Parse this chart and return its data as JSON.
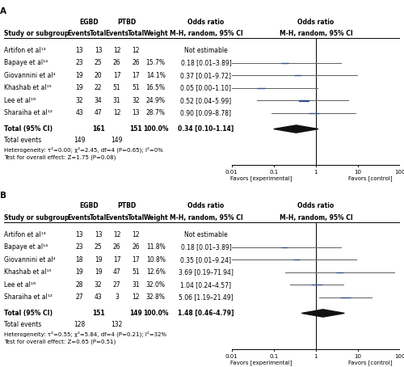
{
  "panel_A": {
    "title": "A",
    "studies": [
      {
        "name": "Artifon et al¹³",
        "egbd_e": "13",
        "egbd_t": "13",
        "ptbd_e": "12",
        "ptbd_t": "12",
        "weight": "",
        "or_text": "Not estimable",
        "or": null,
        "ci_lo": null,
        "ci_hi": null
      },
      {
        "name": "Bapaye et al¹⁴",
        "egbd_e": "23",
        "egbd_t": "25",
        "ptbd_e": "26",
        "ptbd_t": "26",
        "weight": "15.7%",
        "or_text": "0.18 [0.01–3.89]",
        "or": 0.18,
        "ci_lo": 0.01,
        "ci_hi": 3.89
      },
      {
        "name": "Giovannini et al⁴",
        "egbd_e": "19",
        "egbd_t": "20",
        "ptbd_e": "17",
        "ptbd_t": "17",
        "weight": "14.1%",
        "or_text": "0.37 [0.01–9.72]",
        "or": 0.37,
        "ci_lo": 0.01,
        "ci_hi": 9.72
      },
      {
        "name": "Khashab et al¹⁵",
        "egbd_e": "19",
        "egbd_t": "22",
        "ptbd_e": "51",
        "ptbd_t": "51",
        "weight": "16.5%",
        "or_text": "0.05 [0.00–1.10]",
        "or": 0.05,
        "ci_lo": 0.003,
        "ci_hi": 1.1
      },
      {
        "name": "Lee et al¹⁶",
        "egbd_e": "32",
        "egbd_t": "34",
        "ptbd_e": "31",
        "ptbd_t": "32",
        "weight": "24.9%",
        "or_text": "0.52 [0.04–5.99]",
        "or": 0.52,
        "ci_lo": 0.04,
        "ci_hi": 5.99
      },
      {
        "name": "Sharaiha et al¹²",
        "egbd_e": "43",
        "egbd_t": "47",
        "ptbd_e": "12",
        "ptbd_t": "13",
        "weight": "28.7%",
        "or_text": "0.90 [0.09–8.78]",
        "or": 0.9,
        "ci_lo": 0.09,
        "ci_hi": 8.78
      }
    ],
    "total_egbd_t": "161",
    "total_ptbd_t": "151",
    "total_weight": "100.0%",
    "total_or_text": "0.34 [0.10–1.14]",
    "total_events_egbd": "149",
    "total_events_ptbd": "149",
    "diamond_or": 0.34,
    "diamond_lo": 0.1,
    "diamond_hi": 1.14,
    "heterogeneity": "Heterogeneity: τ²=0.00; χ²=2.45, df=4 (P=0.65); I²=0%",
    "overall_effect": "Test for overall effect: Z=1.75 (P=0.08)"
  },
  "panel_B": {
    "title": "B",
    "studies": [
      {
        "name": "Artifon et al¹³",
        "egbd_e": "13",
        "egbd_t": "13",
        "ptbd_e": "12",
        "ptbd_t": "12",
        "weight": "",
        "or_text": "Not estimable",
        "or": null,
        "ci_lo": null,
        "ci_hi": null
      },
      {
        "name": "Bapaye et al¹⁴",
        "egbd_e": "23",
        "egbd_t": "25",
        "ptbd_e": "26",
        "ptbd_t": "26",
        "weight": "11.8%",
        "or_text": "0.18 [0.01–3.89]",
        "or": 0.18,
        "ci_lo": 0.01,
        "ci_hi": 3.89
      },
      {
        "name": "Giovannini et al⁴",
        "egbd_e": "18",
        "egbd_t": "19",
        "ptbd_e": "17",
        "ptbd_t": "17",
        "weight": "10.8%",
        "or_text": "0.35 [0.01–9.24]",
        "or": 0.35,
        "ci_lo": 0.01,
        "ci_hi": 9.24
      },
      {
        "name": "Khashab et al¹⁵",
        "egbd_e": "19",
        "egbd_t": "19",
        "ptbd_e": "47",
        "ptbd_t": "51",
        "weight": "12.6%",
        "or_text": "3.69 [0.19–71.94]",
        "or": 3.69,
        "ci_lo": 0.19,
        "ci_hi": 71.94
      },
      {
        "name": "Lee et al¹⁶",
        "egbd_e": "28",
        "egbd_t": "32",
        "ptbd_e": "27",
        "ptbd_t": "31",
        "weight": "32.0%",
        "or_text": "1.04 [0.24–4.57]",
        "or": 1.04,
        "ci_lo": 0.24,
        "ci_hi": 4.57
      },
      {
        "name": "Sharaiha et al¹²",
        "egbd_e": "27",
        "egbd_t": "43",
        "ptbd_e": "3",
        "ptbd_t": "12",
        "weight": "32.8%",
        "or_text": "5.06 [1.19–21.49]",
        "or": 5.06,
        "ci_lo": 1.19,
        "ci_hi": 21.49
      }
    ],
    "total_egbd_t": "151",
    "total_ptbd_t": "149",
    "total_weight": "100.0%",
    "total_or_text": "1.48 [0.46–4.79]",
    "total_events_egbd": "128",
    "total_events_ptbd": "132",
    "diamond_or": 1.48,
    "diamond_lo": 0.46,
    "diamond_hi": 4.79,
    "heterogeneity": "Heterogeneity: τ²=0.55; χ²=5.84, df=4 (P=0.21); I²=32%",
    "overall_effect": "Test for overall effect: Z=0.65 (P=0.51)"
  },
  "colors": {
    "square": "#354f8e",
    "diamond": "#111111",
    "line": "#666666",
    "text": "#000000"
  },
  "xaxis": {
    "log_min": 0.01,
    "log_max": 100,
    "ticks": [
      0.01,
      0.1,
      1,
      10,
      100
    ],
    "tick_labels": [
      "0.01",
      "0.1",
      "1",
      "10",
      "100"
    ],
    "xlabel_left": "Favors [experimental]",
    "xlabel_right": "Favors [control]"
  }
}
